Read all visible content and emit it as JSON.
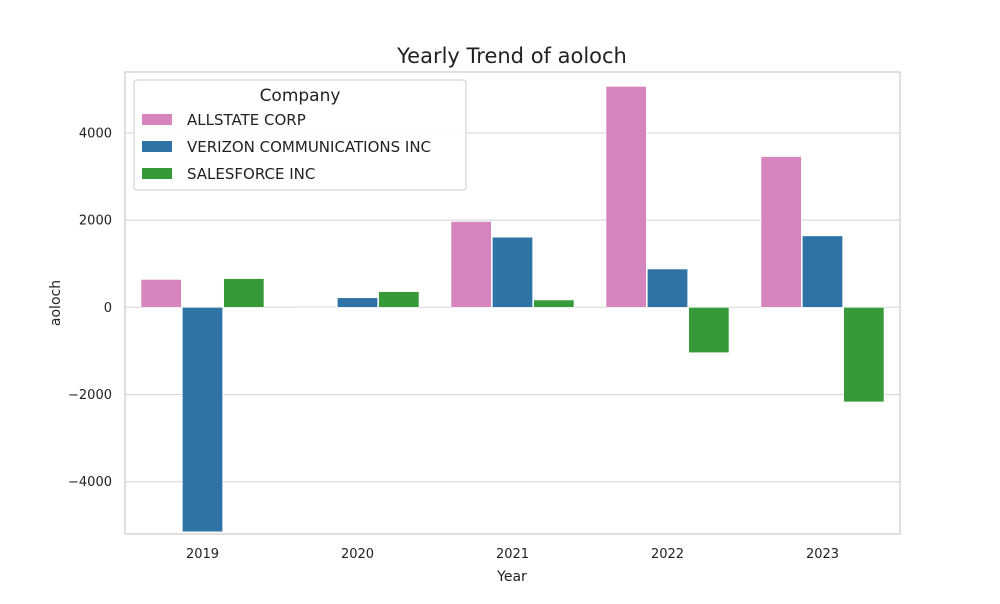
{
  "chart_data": {
    "type": "bar",
    "title": "Yearly Trend of aoloch",
    "xlabel": "Year",
    "ylabel": "aoloch",
    "categories": [
      "2019",
      "2020",
      "2021",
      "2022",
      "2023"
    ],
    "ylim": [
      -5200,
      5400
    ],
    "yticks": [
      -4000,
      -2000,
      0,
      2000,
      4000
    ],
    "ytick_labels": [
      "−4000",
      "−2000",
      "0",
      "2000",
      "4000"
    ],
    "grid": true,
    "legend": {
      "title": "Company",
      "placement": "top-left"
    },
    "series": [
      {
        "name": "ALLSTATE CORP",
        "color": "#d684bd",
        "values": [
          640,
          20,
          1970,
          5070,
          3460
        ]
      },
      {
        "name": "VERIZON COMMUNICATIONS INC",
        "color": "#2e72a6",
        "values": [
          -5150,
          220,
          1610,
          880,
          1640
        ]
      },
      {
        "name": "SALESFORCE INC",
        "color": "#359a37",
        "values": [
          660,
          360,
          170,
          -1040,
          -2170
        ]
      }
    ]
  }
}
